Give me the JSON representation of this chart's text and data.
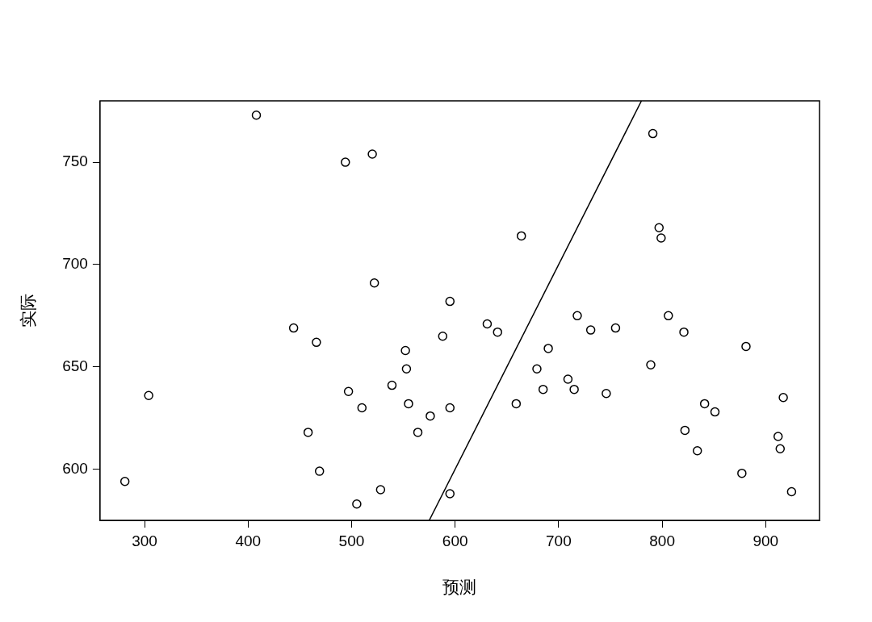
{
  "chart_data": {
    "type": "scatter",
    "xlabel": "预测",
    "ylabel": "实际",
    "xlim": [
      257,
      952
    ],
    "ylim": [
      575,
      780
    ],
    "xticks": [
      300,
      400,
      500,
      600,
      700,
      800,
      900
    ],
    "yticks": [
      600,
      650,
      700,
      750
    ],
    "grid": false,
    "legend": false,
    "marker": "circle",
    "series": [
      {
        "color": "#000000",
        "x": [
          281,
          304,
          408,
          444,
          458,
          466,
          469,
          494,
          497,
          505,
          510,
          520,
          522,
          528,
          539,
          552,
          553,
          555,
          564,
          576,
          588,
          595,
          595,
          595,
          631,
          641,
          659,
          664,
          679,
          685,
          690,
          709,
          715,
          718,
          731,
          746,
          755,
          789,
          791,
          797,
          799,
          806,
          821,
          822,
          834,
          841,
          851,
          877,
          881,
          912,
          914,
          917,
          925
        ],
        "values": [
          594,
          636,
          773,
          669,
          618,
          662,
          599,
          750,
          638,
          583,
          630,
          754,
          691,
          590,
          641,
          658,
          649,
          632,
          618,
          626,
          665,
          630,
          682,
          588,
          671,
          667,
          632,
          714,
          649,
          639,
          659,
          644,
          639,
          675,
          668,
          637,
          669,
          651,
          764,
          718,
          713,
          675,
          667,
          619,
          609,
          632,
          628,
          598,
          660,
          616,
          610,
          635,
          589
        ]
      },
      {
        "type": "line",
        "marker": "none",
        "color": "#000000",
        "x": [
          575,
          780
        ],
        "values": [
          575,
          780
        ]
      }
    ]
  }
}
